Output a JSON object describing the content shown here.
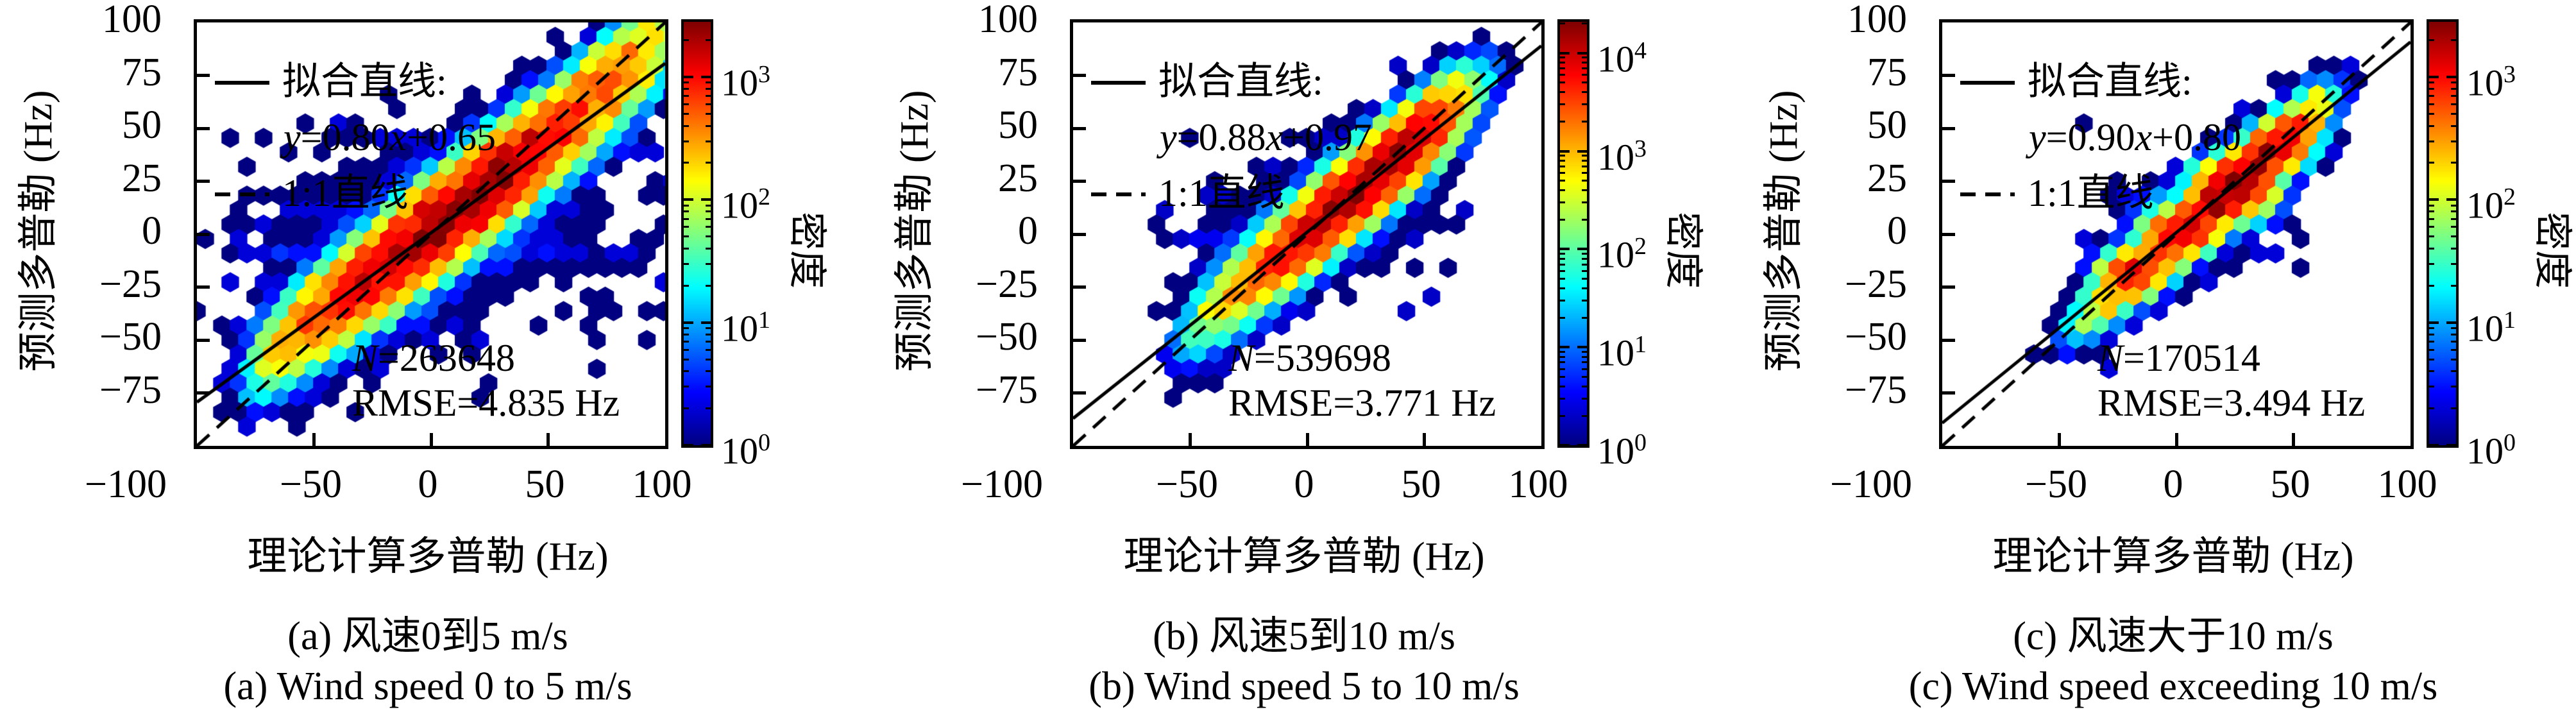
{
  "figure": {
    "xlabel": "理论计算多普勒 (Hz)",
    "ylabel": "预测多普勒 (Hz)",
    "colorbar_label": "密度",
    "legend_fit_label": "拟合直线:",
    "legend_ref_label": "1:1直线"
  },
  "chart_data": [
    {
      "type": "hexbin",
      "caption_zh": "(a) 风速0到5 m/s",
      "caption_en": "(a) Wind speed 0 to 5 m/s",
      "N": 263648,
      "RMSE_Hz": 4.835,
      "fit_line": {
        "slope": 0.8,
        "intercept": 0.65,
        "equation_parts": [
          [
            "y",
            1
          ],
          [
            "=0.80",
            0
          ],
          [
            "x",
            1
          ],
          [
            "+0.65",
            0
          ]
        ]
      },
      "reference_line": {
        "slope": 1,
        "intercept": 0,
        "label": "1:1"
      },
      "stats_parts": {
        "N": [
          [
            "N",
            1
          ],
          [
            "=263648",
            0
          ]
        ],
        "RMSE": [
          [
            "RMSE=4.835 Hz",
            0
          ]
        ]
      },
      "axes": {
        "xlim": [
          -100,
          100
        ],
        "ylim": [
          -100,
          100
        ],
        "xtick_values": [
          -100,
          -50,
          0,
          50,
          100
        ],
        "xtick_labels": [
          "−100",
          "−50",
          "0",
          "50",
          "100"
        ],
        "xtick_marks": [
          -50,
          0,
          50
        ],
        "ytick_values": [
          100,
          75,
          50,
          25,
          0,
          -25,
          -50,
          -75
        ],
        "ytick_labels": [
          "100",
          "75",
          "50",
          "25",
          "0",
          "−25",
          "−50",
          "−75"
        ]
      },
      "colorbar": {
        "scale": "log",
        "vmin": 1,
        "log_vmax": 3.45,
        "tick_exponents": [
          0,
          1,
          2,
          3
        ]
      },
      "density_model": {
        "seed": 11,
        "ridges": [
          {
            "a": 0.85,
            "b": 1.5,
            "amp": 2400,
            "xc": 8,
            "sx": 34,
            "sigma": 7.2,
            "xmin": -72,
            "xmax": 103
          },
          {
            "a": 1.0,
            "b": 0,
            "amp": 260,
            "xc": 72,
            "sx": 26,
            "sigma": 6,
            "xmin": 20,
            "xmax": 104
          },
          {
            "a": 0.8,
            "b": 0,
            "amp": 8,
            "xc": 0,
            "sx": 40,
            "sigma": 16,
            "xmin": -78,
            "xmax": 95
          }
        ],
        "clusters": [],
        "halo": {
          "cx": 5,
          "cy": 0,
          "sx": 52,
          "sy": 27,
          "amp": 1.6
        },
        "striations": [
          {
            "y": -45,
            "x0": -88,
            "x1": -42,
            "amp": 2.2,
            "sy": 2.4
          },
          {
            "y": -52,
            "x0": -78,
            "x1": -50,
            "amp": 1.5,
            "sy": 2.0
          },
          {
            "y": -10,
            "x0": -82,
            "x1": -48,
            "amp": 1.8,
            "sy": 2.4
          },
          {
            "y": -12,
            "x0": 30,
            "x1": 92,
            "amp": 2.0,
            "sy": 2.6
          },
          {
            "y": 40,
            "x0": 52,
            "x1": 100,
            "amp": 2.2,
            "sy": 2.6
          },
          {
            "y": 66,
            "x0": 58,
            "x1": 100,
            "amp": 1.5,
            "sy": 2.4
          }
        ],
        "outliers": {
          "p": 0.02,
          "x0": -90,
          "x1": 102,
          "y0": -60,
          "y1": 95
        }
      }
    },
    {
      "type": "hexbin",
      "caption_zh": "(b) 风速5到10 m/s",
      "caption_en": "(b) Wind speed 5 to 10 m/s",
      "N": 539698,
      "RMSE_Hz": 3.771,
      "fit_line": {
        "slope": 0.88,
        "intercept": 0.97,
        "equation_parts": [
          [
            "y",
            1
          ],
          [
            "=0.88",
            0
          ],
          [
            "x",
            1
          ],
          [
            "+0.97",
            0
          ]
        ]
      },
      "reference_line": {
        "slope": 1,
        "intercept": 0,
        "label": "1:1"
      },
      "stats_parts": {
        "N": [
          [
            "N",
            1
          ],
          [
            "=539698",
            0
          ]
        ],
        "RMSE": [
          [
            "RMSE=3.771 Hz",
            0
          ]
        ]
      },
      "axes": {
        "xlim": [
          -100,
          100
        ],
        "ylim": [
          -100,
          100
        ],
        "xtick_values": [
          -100,
          -50,
          0,
          50,
          100
        ],
        "xtick_labels": [
          "−100",
          "−50",
          "0",
          "50",
          "100"
        ],
        "xtick_marks": [
          -50,
          0,
          50
        ],
        "ytick_values": [
          100,
          75,
          50,
          25,
          0,
          -25,
          -50,
          -75
        ],
        "ytick_labels": [
          "100",
          "75",
          "50",
          "25",
          "0",
          "−25",
          "−50",
          "−75"
        ]
      },
      "colorbar": {
        "scale": "log",
        "vmin": 1,
        "log_vmax": 4.32,
        "tick_exponents": [
          0,
          1,
          2,
          3,
          4
        ]
      },
      "density_model": {
        "seed": 22,
        "ridges": [
          {
            "a": 0.92,
            "b": 1,
            "amp": 17000,
            "xc": 24,
            "sx": 24,
            "sigma": 5.4,
            "xmin": -50,
            "xmax": 63
          },
          {
            "a": 0.92,
            "b": 1,
            "amp": 12,
            "xc": 5,
            "sx": 30,
            "sigma": 11,
            "xmin": -52,
            "xmax": 63
          }
        ],
        "clusters": [],
        "halo": {
          "cx": 8,
          "cy": 5,
          "sx": 30,
          "sy": 18,
          "amp": 1.4
        },
        "striations": [
          {
            "y": -4,
            "x0": -58,
            "x1": -32,
            "amp": 2.4,
            "sy": 2.2
          },
          {
            "y": 18,
            "x0": -45,
            "x1": -26,
            "amp": 2.0,
            "sy": 2.2
          },
          {
            "y": -34,
            "x0": -50,
            "x1": -34,
            "amp": 1.4,
            "sy": 2.0
          }
        ],
        "outliers": {
          "p": 0.012,
          "x0": -60,
          "x1": 70,
          "y0": -48,
          "y1": 62
        }
      }
    },
    {
      "type": "hexbin",
      "caption_zh": "(c) 风速大于10 m/s",
      "caption_en": "(c) Wind speed exceeding 10 m/s",
      "N": 170514,
      "RMSE_Hz": 3.494,
      "fit_line": {
        "slope": 0.9,
        "intercept": 0.8,
        "equation_parts": [
          [
            "y",
            1
          ],
          [
            "=0.90",
            0
          ],
          [
            "x",
            1
          ],
          [
            "+0.80",
            0
          ]
        ]
      },
      "reference_line": {
        "slope": 1,
        "intercept": 0,
        "label": "1:1"
      },
      "stats_parts": {
        "N": [
          [
            "N",
            1
          ],
          [
            "=170514",
            0
          ]
        ],
        "RMSE": [
          [
            "RMSE=3.494 Hz",
            0
          ]
        ]
      },
      "axes": {
        "xlim": [
          -100,
          100
        ],
        "ylim": [
          -100,
          100
        ],
        "xtick_values": [
          -100,
          -50,
          0,
          50,
          100
        ],
        "xtick_labels": [
          "−100",
          "−50",
          "0",
          "50",
          "100"
        ],
        "xtick_marks": [
          -50,
          0,
          50
        ],
        "ytick_values": [
          100,
          75,
          50,
          25,
          0,
          -25,
          -50,
          -75
        ],
        "ytick_labels": [
          "100",
          "75",
          "50",
          "25",
          "0",
          "−25",
          "−50",
          "−75"
        ]
      },
      "colorbar": {
        "scale": "log",
        "vmin": 1,
        "log_vmax": 3.45,
        "tick_exponents": [
          0,
          1,
          2,
          3
        ]
      },
      "density_model": {
        "seed": 33,
        "ridges": [
          {
            "a": 0.95,
            "b": -1,
            "amp": 1400,
            "xc": 22,
            "sx": 26,
            "sigma": 4.8,
            "xmin": -43,
            "xmax": 59
          },
          {
            "a": 0.95,
            "b": -1,
            "amp": 9,
            "xc": 10,
            "sx": 30,
            "sigma": 10,
            "xmin": -45,
            "xmax": 60
          }
        ],
        "clusters": [
          {
            "cx": -20,
            "cy": -20,
            "amp": 700,
            "sx": 6,
            "sy": 5
          },
          {
            "cx": 3,
            "cy": 2,
            "amp": 900,
            "sx": 7,
            "sy": 5
          },
          {
            "cx": 25,
            "cy": 22,
            "amp": 1600,
            "sx": 7,
            "sy": 6
          },
          {
            "cx": 44,
            "cy": 41,
            "amp": 800,
            "sx": 6,
            "sy": 5
          }
        ],
        "halo": {
          "cx": 12,
          "cy": 10,
          "sx": 26,
          "sy": 16,
          "amp": 1.2
        },
        "striations": [
          {
            "y": 20,
            "x0": -35,
            "x1": -8,
            "amp": 2.2,
            "sy": 2.2
          },
          {
            "y": -27,
            "x0": -45,
            "x1": -26,
            "amp": 1.8,
            "sy": 2.2
          },
          {
            "y": -6,
            "x0": -56,
            "x1": -44,
            "amp": 1.0,
            "sy": 2.0
          }
        ],
        "outliers": {
          "p": 0.008,
          "x0": -52,
          "x1": 66,
          "y0": -40,
          "y1": 60
        }
      }
    }
  ]
}
